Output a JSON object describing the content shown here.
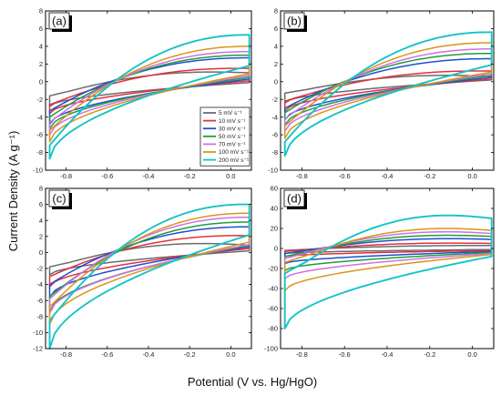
{
  "chart_data": {
    "type": "line",
    "xlabel": "Potential (V vs. Hg/HgO)",
    "ylabel": "Current Density (A g⁻¹)",
    "legend": {
      "placement": "inside panel (a), lower-right",
      "entries": [
        "5 mV s⁻¹",
        "10 mV s⁻¹",
        "30 mV s⁻¹",
        "50 mV s⁻¹",
        "70 mV s⁻¹",
        "100 mV s⁻¹",
        "200 mV s⁻¹"
      ]
    },
    "series_colors": [
      "#6b6b6b",
      "#e2323c",
      "#1f4fcf",
      "#1e9e3a",
      "#d070e6",
      "#d8961a",
      "#16c3c6"
    ],
    "x_ticks": [
      "-0.8",
      "-0.6",
      "-0.4",
      "-0.2",
      "0.0"
    ],
    "panels": [
      {
        "label": "(a)",
        "xlim": [
          -0.9,
          0.1
        ],
        "ylim": [
          -10,
          8
        ],
        "y_ticks": [
          "-10",
          "-8",
          "-6",
          "-4",
          "-2",
          "0",
          "2",
          "4",
          "6",
          "8"
        ],
        "curves": [
          {
            "scan_rate": "5 mV s⁻¹",
            "start_lower": -2.8,
            "end_lower": -0.1,
            "upper_start": -1.6,
            "peak": 1.3,
            "upper_end": 1.0
          },
          {
            "scan_rate": "10 mV s⁻¹",
            "start_lower": -3.6,
            "end_lower": 0.1,
            "upper_start": -2.6,
            "peak": 1.6,
            "upper_end": 1.5
          },
          {
            "scan_rate": "30 mV s⁻¹",
            "start_lower": -4.8,
            "end_lower": 0.3,
            "upper_start": -3.3,
            "peak": 2.6,
            "upper_end": 2.7
          },
          {
            "scan_rate": "50 mV s⁻¹",
            "start_lower": -5.3,
            "end_lower": 0.5,
            "upper_start": -4.0,
            "peak": 2.9,
            "upper_end": 3.0
          },
          {
            "scan_rate": "70 mV s⁻¹",
            "start_lower": -6.0,
            "end_lower": 0.7,
            "upper_start": -4.6,
            "peak": 3.3,
            "upper_end": 3.4
          },
          {
            "scan_rate": "100 mV s⁻¹",
            "start_lower": -6.8,
            "end_lower": 0.9,
            "upper_start": -5.5,
            "peak": 3.8,
            "upper_end": 4.0
          },
          {
            "scan_rate": "200 mV s⁻¹",
            "start_lower": -8.7,
            "end_lower": 1.8,
            "upper_start": -7.2,
            "peak": 5.3,
            "upper_end": 5.3
          }
        ]
      },
      {
        "label": "(b)",
        "xlim": [
          -0.9,
          0.1
        ],
        "ylim": [
          -10,
          8
        ],
        "y_ticks": [
          "-10",
          "-8",
          "-6",
          "-4",
          "-2",
          "0",
          "2",
          "4",
          "6",
          "8"
        ],
        "curves": [
          {
            "scan_rate": "5 mV s⁻¹",
            "start_lower": -2.4,
            "end_lower": 0.2,
            "upper_start": -1.3,
            "peak": 0.9,
            "upper_end": 0.6
          },
          {
            "scan_rate": "10 mV s⁻¹",
            "start_lower": -3.3,
            "end_lower": 0.3,
            "upper_start": -2.2,
            "peak": 1.3,
            "upper_end": 1.2
          },
          {
            "scan_rate": "30 mV s⁻¹",
            "start_lower": -4.3,
            "end_lower": 0.5,
            "upper_start": -3.0,
            "peak": 2.6,
            "upper_end": 2.6
          },
          {
            "scan_rate": "50 mV s⁻¹",
            "start_lower": -4.9,
            "end_lower": 0.7,
            "upper_start": -3.5,
            "peak": 3.1,
            "upper_end": 3.2
          },
          {
            "scan_rate": "70 mV s⁻¹",
            "start_lower": -5.6,
            "end_lower": 0.9,
            "upper_start": -4.2,
            "peak": 3.5,
            "upper_end": 3.7
          },
          {
            "scan_rate": "100 mV s⁻¹",
            "start_lower": -6.4,
            "end_lower": 1.1,
            "upper_start": -5.0,
            "peak": 4.2,
            "upper_end": 4.4
          },
          {
            "scan_rate": "200 mV s⁻¹",
            "start_lower": -8.4,
            "end_lower": 1.9,
            "upper_start": -6.8,
            "peak": 5.4,
            "upper_end": 5.6
          }
        ]
      },
      {
        "label": "(c)",
        "xlim": [
          -0.9,
          0.1
        ],
        "ylim": [
          -12,
          8
        ],
        "y_ticks": [
          "-12",
          "-10",
          "-8",
          "-6",
          "-4",
          "-2",
          "0",
          "2",
          "4",
          "6",
          "8"
        ],
        "curves": [
          {
            "scan_rate": "5 mV s⁻¹",
            "start_lower": -2.8,
            "end_lower": 0.2,
            "upper_start": -1.8,
            "peak": 1.4,
            "upper_end": 0.9
          },
          {
            "scan_rate": "10 mV s⁻¹",
            "start_lower": -4.3,
            "end_lower": 0.5,
            "upper_start": -3.0,
            "peak": 2.2,
            "upper_end": 2.1
          },
          {
            "scan_rate": "30 mV s⁻¹",
            "start_lower": -5.6,
            "end_lower": 0.7,
            "upper_start": -4.0,
            "peak": 3.0,
            "upper_end": 3.2
          },
          {
            "scan_rate": "50 mV s⁻¹",
            "start_lower": -7.4,
            "end_lower": 0.9,
            "upper_start": -5.5,
            "peak": 3.6,
            "upper_end": 3.8
          },
          {
            "scan_rate": "70 mV s⁻¹",
            "start_lower": -7.6,
            "end_lower": 1.0,
            "upper_start": -5.8,
            "peak": 4.1,
            "upper_end": 4.4
          },
          {
            "scan_rate": "100 mV s⁻¹",
            "start_lower": -9.0,
            "end_lower": 1.3,
            "upper_start": -6.8,
            "peak": 4.7,
            "upper_end": 4.9
          },
          {
            "scan_rate": "200 mV s⁻¹",
            "start_lower": -12.0,
            "end_lower": 2.2,
            "upper_start": -8.5,
            "peak": 6.1,
            "upper_end": 6.0
          }
        ]
      },
      {
        "label": "(d)",
        "xlim": [
          -0.9,
          0.1
        ],
        "ylim": [
          -100,
          60
        ],
        "y_ticks": [
          "-100",
          "-80",
          "-60",
          "-40",
          "-20",
          "0",
          "20",
          "40",
          "60"
        ],
        "curves": [
          {
            "scan_rate": "5 mV s⁻¹",
            "start_lower": -5,
            "end_lower": -1,
            "upper_start": -2,
            "peak": 3,
            "upper_end": 3
          },
          {
            "scan_rate": "10 mV s⁻¹",
            "start_lower": -8,
            "end_lower": -2,
            "upper_start": -3,
            "peak": 6,
            "upper_end": 5
          },
          {
            "scan_rate": "30 mV s⁻¹",
            "start_lower": -15,
            "end_lower": -3,
            "upper_start": -5,
            "peak": 11,
            "upper_end": 9
          },
          {
            "scan_rate": "50 mV s⁻¹",
            "start_lower": -22,
            "end_lower": -4,
            "upper_start": -8,
            "peak": 15,
            "upper_end": 12
          },
          {
            "scan_rate": "70 mV s⁻¹",
            "start_lower": -30,
            "end_lower": -5,
            "upper_start": -10,
            "peak": 19,
            "upper_end": 15
          },
          {
            "scan_rate": "100 mV s⁻¹",
            "start_lower": -42,
            "end_lower": -6,
            "upper_start": -14,
            "peak": 23,
            "upper_end": 18
          },
          {
            "scan_rate": "200 mV s⁻¹",
            "start_lower": -80,
            "end_lower": -8,
            "upper_start": -25,
            "peak": 38,
            "upper_end": 30
          }
        ]
      }
    ]
  }
}
